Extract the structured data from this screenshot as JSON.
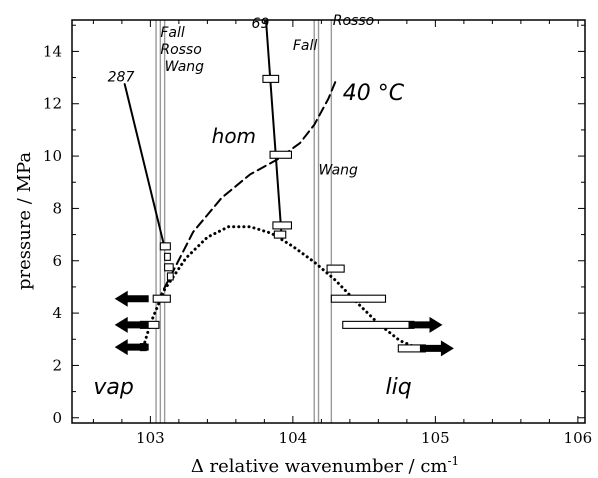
{
  "chart_data": {
    "type": "scatter",
    "xlabel": "Δ relative wavenumber  /  cm",
    "xlabel_sup": "-1",
    "ylabel": "pressure  /  MPa",
    "xlim": [
      102.45,
      106.05
    ],
    "ylim": [
      -0.2,
      15.2
    ],
    "x_ticks": [
      103,
      104,
      105,
      106
    ],
    "y_ticks": [
      0,
      2,
      4,
      6,
      8,
      10,
      12,
      14
    ],
    "x_minor_step": 0.2,
    "y_minor_step": 1,
    "reference_lines": [
      {
        "name": "fall-vap",
        "x": 103.04
      },
      {
        "name": "rosso-vap",
        "x": 103.07
      },
      {
        "name": "wang-vap",
        "x": 103.1
      },
      {
        "name": "fall-liq",
        "x": 104.15
      },
      {
        "name": "wang-liq",
        "x": 104.18
      },
      {
        "name": "rosso-liq",
        "x": 104.27
      }
    ],
    "data_boxes": [
      {
        "x1": 103.07,
        "x2": 103.14,
        "y": 6.55
      },
      {
        "x1": 103.1,
        "x2": 103.14,
        "y": 6.15
      },
      {
        "x1": 103.1,
        "x2": 103.16,
        "y": 5.75
      },
      {
        "x1": 103.12,
        "x2": 103.16,
        "y": 5.4
      },
      {
        "x1": 103.02,
        "x2": 103.14,
        "y": 4.55
      },
      {
        "x1": 102.93,
        "x2": 103.06,
        "y": 3.55
      },
      {
        "x1": 102.93,
        "x2": 102.97,
        "y": 2.7
      },
      {
        "x1": 103.79,
        "x2": 103.9,
        "y": 12.95
      },
      {
        "x1": 103.84,
        "x2": 103.99,
        "y": 10.05
      },
      {
        "x1": 103.86,
        "x2": 103.99,
        "y": 7.35
      },
      {
        "x1": 103.87,
        "x2": 103.95,
        "y": 7.0
      },
      {
        "x1": 104.24,
        "x2": 104.36,
        "y": 5.7
      },
      {
        "x1": 104.27,
        "x2": 104.65,
        "y": 4.55
      },
      {
        "x1": 104.35,
        "x2": 104.85,
        "y": 3.55
      },
      {
        "x1": 104.74,
        "x2": 104.93,
        "y": 2.65
      }
    ],
    "series": [
      {
        "style": "dotted",
        "x": [
          102.95,
          103.0,
          103.1,
          103.25,
          103.4,
          103.55,
          103.7,
          103.85,
          104.0,
          104.15,
          104.3,
          104.45,
          104.6,
          104.75,
          104.88
        ],
        "y": [
          2.7,
          3.6,
          4.9,
          6.1,
          6.9,
          7.3,
          7.3,
          7.05,
          6.55,
          5.95,
          5.25,
          4.4,
          3.6,
          2.95,
          2.65
        ]
      },
      {
        "name": "40 °C",
        "style": "dashed",
        "x": [
          103.05,
          103.15,
          103.3,
          103.5,
          103.7,
          103.9,
          104.05,
          104.15,
          104.25,
          104.31
        ],
        "y": [
          4.45,
          5.5,
          7.1,
          8.4,
          9.3,
          9.9,
          10.5,
          11.2,
          12.2,
          13.0
        ]
      },
      {
        "name": "287",
        "style": "solid",
        "x": [
          102.82,
          103.1
        ],
        "y": [
          12.75,
          6.5
        ]
      },
      {
        "name": "69",
        "style": "solid",
        "x": [
          103.81,
          103.92
        ],
        "y": [
          15.3,
          7.0
        ]
      }
    ],
    "arrows": [
      {
        "x": 102.75,
        "y": 4.55,
        "direction": "left"
      },
      {
        "x": 102.75,
        "y": 3.55,
        "direction": "left"
      },
      {
        "x": 102.75,
        "y": 2.7,
        "direction": "left"
      },
      {
        "x": 105.05,
        "y": 3.55,
        "direction": "right"
      },
      {
        "x": 105.13,
        "y": 2.65,
        "direction": "right"
      }
    ],
    "annotations": [
      {
        "text": "Fall",
        "x": 103.07,
        "y": 14.55,
        "size": 14
      },
      {
        "text": "Rosso",
        "x": 103.07,
        "y": 13.9,
        "size": 14
      },
      {
        "text": "Wang",
        "x": 103.1,
        "y": 13.25,
        "size": 14
      },
      {
        "text": "287",
        "x": 102.7,
        "y": 12.85,
        "size": 14
      },
      {
        "text": "69",
        "x": 103.71,
        "y": 14.9,
        "size": 14
      },
      {
        "text": "Fall",
        "x": 104.0,
        "y": 14.05,
        "size": 14
      },
      {
        "text": "Rosso",
        "x": 104.28,
        "y": 15.0,
        "size": 14
      },
      {
        "text": "40 °C",
        "x": 104.35,
        "y": 12.15,
        "size": 22
      },
      {
        "text": "hom",
        "x": 103.43,
        "y": 10.5,
        "size": 20
      },
      {
        "text": "Wang",
        "x": 104.18,
        "y": 9.3,
        "size": 14
      },
      {
        "text": "vap",
        "x": 102.6,
        "y": 0.9,
        "size": 22
      },
      {
        "text": "liq",
        "x": 104.65,
        "y": 0.9,
        "size": 22
      }
    ]
  }
}
